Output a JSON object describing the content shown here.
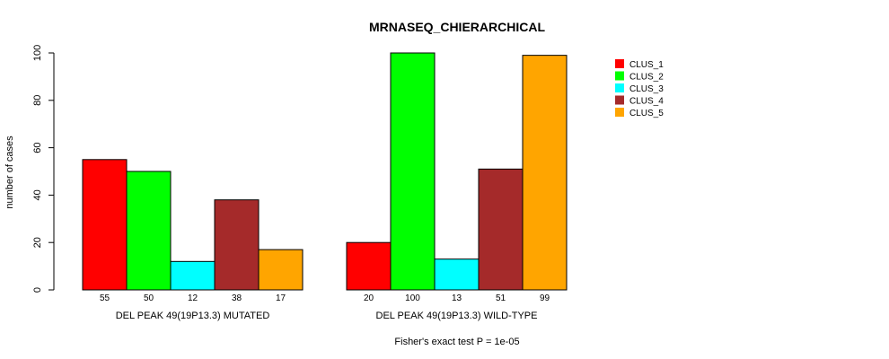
{
  "chart_data": {
    "type": "bar",
    "title": "MRNASEQ_CHIERARCHICAL",
    "ylabel": "number of cases",
    "ylim": [
      0,
      100
    ],
    "yticks": [
      0,
      20,
      40,
      60,
      80,
      100
    ],
    "groups": [
      "DEL PEAK 49(19P13.3) MUTATED",
      "DEL PEAK 49(19P13.3) WILD-TYPE"
    ],
    "series": [
      {
        "name": "CLUS_1",
        "color": "#ff0000",
        "values": [
          55,
          20
        ]
      },
      {
        "name": "CLUS_2",
        "color": "#00ff00",
        "values": [
          50,
          100
        ]
      },
      {
        "name": "CLUS_3",
        "color": "#00ffff",
        "values": [
          12,
          13
        ]
      },
      {
        "name": "CLUS_4",
        "color": "#a52a2a",
        "values": [
          38,
          51
        ]
      },
      {
        "name": "CLUS_5",
        "color": "#ffa500",
        "values": [
          17,
          99
        ]
      }
    ],
    "legend_position": "top-right",
    "footnote": "Fisher's exact test P = 1e-05"
  }
}
